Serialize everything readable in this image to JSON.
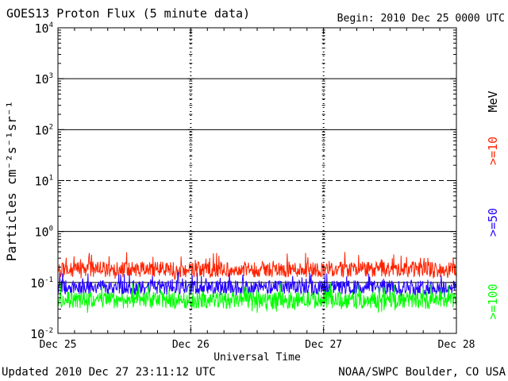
{
  "chart_data": {
    "type": "line",
    "title": "GOES13 Proton Flux (5 minute data)",
    "begin": "Begin: 2010 Dec 25 0000 UTC",
    "xlabel": "Universal Time",
    "ylabel": "Particles cm⁻²s⁻¹sr⁻¹",
    "x_ticks": [
      "Dec 25",
      "Dec 26",
      "Dec 27",
      "Dec 28"
    ],
    "xlim_hours": [
      0,
      72
    ],
    "y_scale": "log",
    "ylim": [
      0.01,
      10000
    ],
    "y_ticks": [
      {
        "base": "10",
        "exp": "-2"
      },
      {
        "base": "10",
        "exp": "-1"
      },
      {
        "base": "10",
        "exp": "0"
      },
      {
        "base": "10",
        "exp": "1"
      },
      {
        "base": "10",
        "exp": "2"
      },
      {
        "base": "10",
        "exp": "3"
      },
      {
        "base": "10",
        "exp": "4"
      }
    ],
    "thresholds": [
      {
        "value": 10,
        "style": "dashed"
      },
      {
        "value": 1,
        "style": "solid"
      },
      {
        "value": 100,
        "style": "solid"
      },
      {
        "value": 1000,
        "style": "solid"
      },
      {
        "value": 0.1,
        "style": "solid"
      }
    ],
    "legend_unit": "MeV",
    "series": [
      {
        "name": ">=10",
        "color": "#ff2200",
        "typical": 0.18,
        "min": 0.11,
        "max": 0.4
      },
      {
        "name": ">=50",
        "color": "#2200ff",
        "typical": 0.08,
        "min": 0.05,
        "max": 0.16
      },
      {
        "name": ">=100",
        "color": "#00ff00",
        "typical": 0.045,
        "min": 0.025,
        "max": 0.1
      }
    ]
  },
  "footer": {
    "updated": "Updated 2010 Dec 27 23:11:12 UTC",
    "source": "NOAA/SWPC Boulder, CO USA"
  }
}
